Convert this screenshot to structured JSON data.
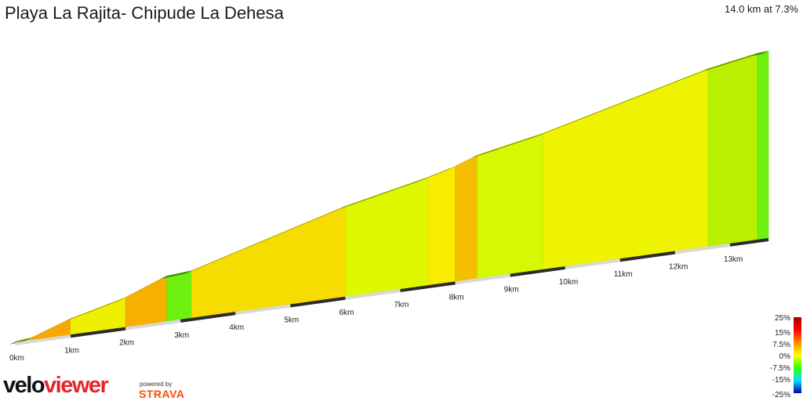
{
  "header": {
    "title": "Playa La Rajita- Chipude La Dehesa",
    "summary": "14.0 km at 7.3%"
  },
  "chart_data": {
    "type": "area",
    "title": "Playa La Rajita- Chipude La Dehesa",
    "x_unit": "km",
    "x_ticks": [
      "0km",
      "1km",
      "2km",
      "3km",
      "4km",
      "5km",
      "6km",
      "7km",
      "8km",
      "9km",
      "10km",
      "11km",
      "12km",
      "13km"
    ],
    "series": [
      {
        "segments": [
          {
            "from_km": 0.0,
            "to_km": 0.3,
            "gradient_pct": 3.0,
            "color": "#a8e010"
          },
          {
            "from_km": 0.3,
            "to_km": 1.0,
            "gradient_pct": 10.0,
            "color": "#f5a800"
          },
          {
            "from_km": 1.0,
            "to_km": 2.0,
            "gradient_pct": 7.0,
            "color": "#eff000"
          },
          {
            "from_km": 2.0,
            "to_km": 2.75,
            "gradient_pct": 11.0,
            "color": "#f5b000"
          },
          {
            "from_km": 2.75,
            "to_km": 3.2,
            "gradient_pct": 2.0,
            "color": "#6ef010"
          },
          {
            "from_km": 3.2,
            "to_km": 6.0,
            "gradient_pct": 8.0,
            "color": "#f6dc00"
          },
          {
            "from_km": 6.0,
            "to_km": 7.5,
            "gradient_pct": 6.0,
            "color": "#def800"
          },
          {
            "from_km": 7.5,
            "to_km": 8.0,
            "gradient_pct": 7.5,
            "color": "#f8ec00"
          },
          {
            "from_km": 8.0,
            "to_km": 8.4,
            "gradient_pct": 10.5,
            "color": "#f5be00"
          },
          {
            "from_km": 8.4,
            "to_km": 9.6,
            "gradient_pct": 5.5,
            "color": "#d6f800"
          },
          {
            "from_km": 9.6,
            "to_km": 12.6,
            "gradient_pct": 7.2,
            "color": "#eef400"
          },
          {
            "from_km": 12.6,
            "to_km": 13.5,
            "gradient_pct": 5.0,
            "color": "#b8f000"
          },
          {
            "from_km": 13.5,
            "to_km": 13.7,
            "gradient_pct": 2.0,
            "color": "#6ef010"
          }
        ]
      }
    ],
    "color_scale": {
      "labels": [
        "25%",
        "15%",
        "7.5%",
        "0%",
        "-7.5%",
        "-15%",
        "-25%"
      ],
      "colors": [
        "#a00000",
        "#ff0000",
        "#ff8c00",
        "#ffff00",
        "#32ff00",
        "#00e0ff",
        "#0000b0"
      ]
    }
  },
  "branding": {
    "logo_part1": "velo",
    "logo_part2": "viewer",
    "powered_by": "powered by",
    "strava": "STRAVA"
  }
}
